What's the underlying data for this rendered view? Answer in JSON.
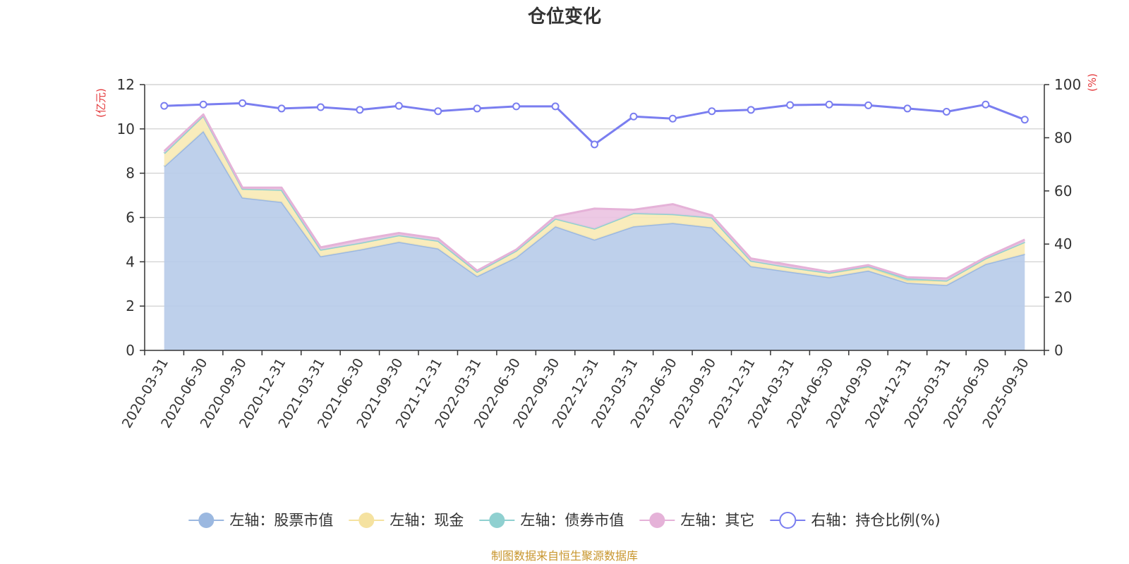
{
  "chart_data": {
    "type": "area",
    "title": "仓位变化",
    "left_axis_unit": "(亿元)",
    "right_axis_unit": "(%)",
    "categories": [
      "2020-03-31",
      "2020-06-30",
      "2020-09-30",
      "2020-12-31",
      "2021-03-31",
      "2021-06-30",
      "2021-09-30",
      "2021-12-31",
      "2022-03-31",
      "2022-06-30",
      "2022-09-30",
      "2022-12-31",
      "2023-03-31",
      "2023-06-30",
      "2023-09-30",
      "2023-12-31",
      "2024-03-31",
      "2024-06-30",
      "2024-09-30",
      "2024-12-31",
      "2025-03-31",
      "2025-06-30",
      "2025-09-30"
    ],
    "ylim_left": [
      0,
      12
    ],
    "yticks_left": [
      0,
      2,
      4,
      6,
      8,
      10,
      12
    ],
    "ylim_right": [
      0,
      100
    ],
    "yticks_right": [
      0,
      20,
      40,
      60,
      80,
      100
    ],
    "grid": true,
    "legend_position": "bottom",
    "series": [
      {
        "name": "左轴：股票市值",
        "axis": "left",
        "stacked": true,
        "color": "#9bb8e0",
        "fill": "#b8cce9",
        "values": [
          8.3,
          9.9,
          6.9,
          6.7,
          4.25,
          4.55,
          4.9,
          4.6,
          3.35,
          4.2,
          5.6,
          5.0,
          5.6,
          5.75,
          5.55,
          3.8,
          3.55,
          3.3,
          3.6,
          3.05,
          2.95,
          3.9,
          4.35
        ]
      },
      {
        "name": "左轴：现金",
        "axis": "left",
        "stacked": true,
        "color": "#f5e2a0",
        "fill": "#f8eab6",
        "values": [
          0.6,
          0.7,
          0.4,
          0.55,
          0.3,
          0.3,
          0.3,
          0.35,
          0.2,
          0.3,
          0.35,
          0.5,
          0.6,
          0.4,
          0.45,
          0.25,
          0.2,
          0.2,
          0.15,
          0.1,
          0.2,
          0.25,
          0.55
        ]
      },
      {
        "name": "左轴：债券市值",
        "axis": "left",
        "stacked": true,
        "color": "#8fd0d0",
        "fill": "#a8dcdc",
        "values": [
          0,
          0,
          0,
          0,
          0,
          0,
          0,
          0,
          0,
          0,
          0,
          0,
          0,
          0,
          0,
          0,
          0,
          0,
          0.05,
          0.1,
          0,
          0,
          0
        ]
      },
      {
        "name": "左轴：其它",
        "axis": "left",
        "stacked": true,
        "color": "#e5b2d8",
        "fill": "#ecc4e2",
        "values": [
          0.1,
          0.05,
          0.05,
          0.1,
          0.1,
          0.15,
          0.1,
          0.1,
          0.05,
          0.05,
          0.1,
          0.9,
          0.15,
          0.45,
          0.1,
          0.1,
          0.1,
          0.05,
          0.05,
          0.05,
          0.1,
          0.05,
          0.1
        ]
      },
      {
        "name": "右轴：持仓比例(%)",
        "axis": "right",
        "type": "line",
        "color": "#7a7ef0",
        "values": [
          92.0,
          92.5,
          93.0,
          91.0,
          91.5,
          90.5,
          92.0,
          90.0,
          91.0,
          91.8,
          91.8,
          77.5,
          88.0,
          87.2,
          90.0,
          90.5,
          92.3,
          92.5,
          92.2,
          91.0,
          89.8,
          92.5,
          86.8
        ]
      }
    ]
  },
  "footer": {
    "source": "制图数据来自恒生聚源数据库"
  }
}
